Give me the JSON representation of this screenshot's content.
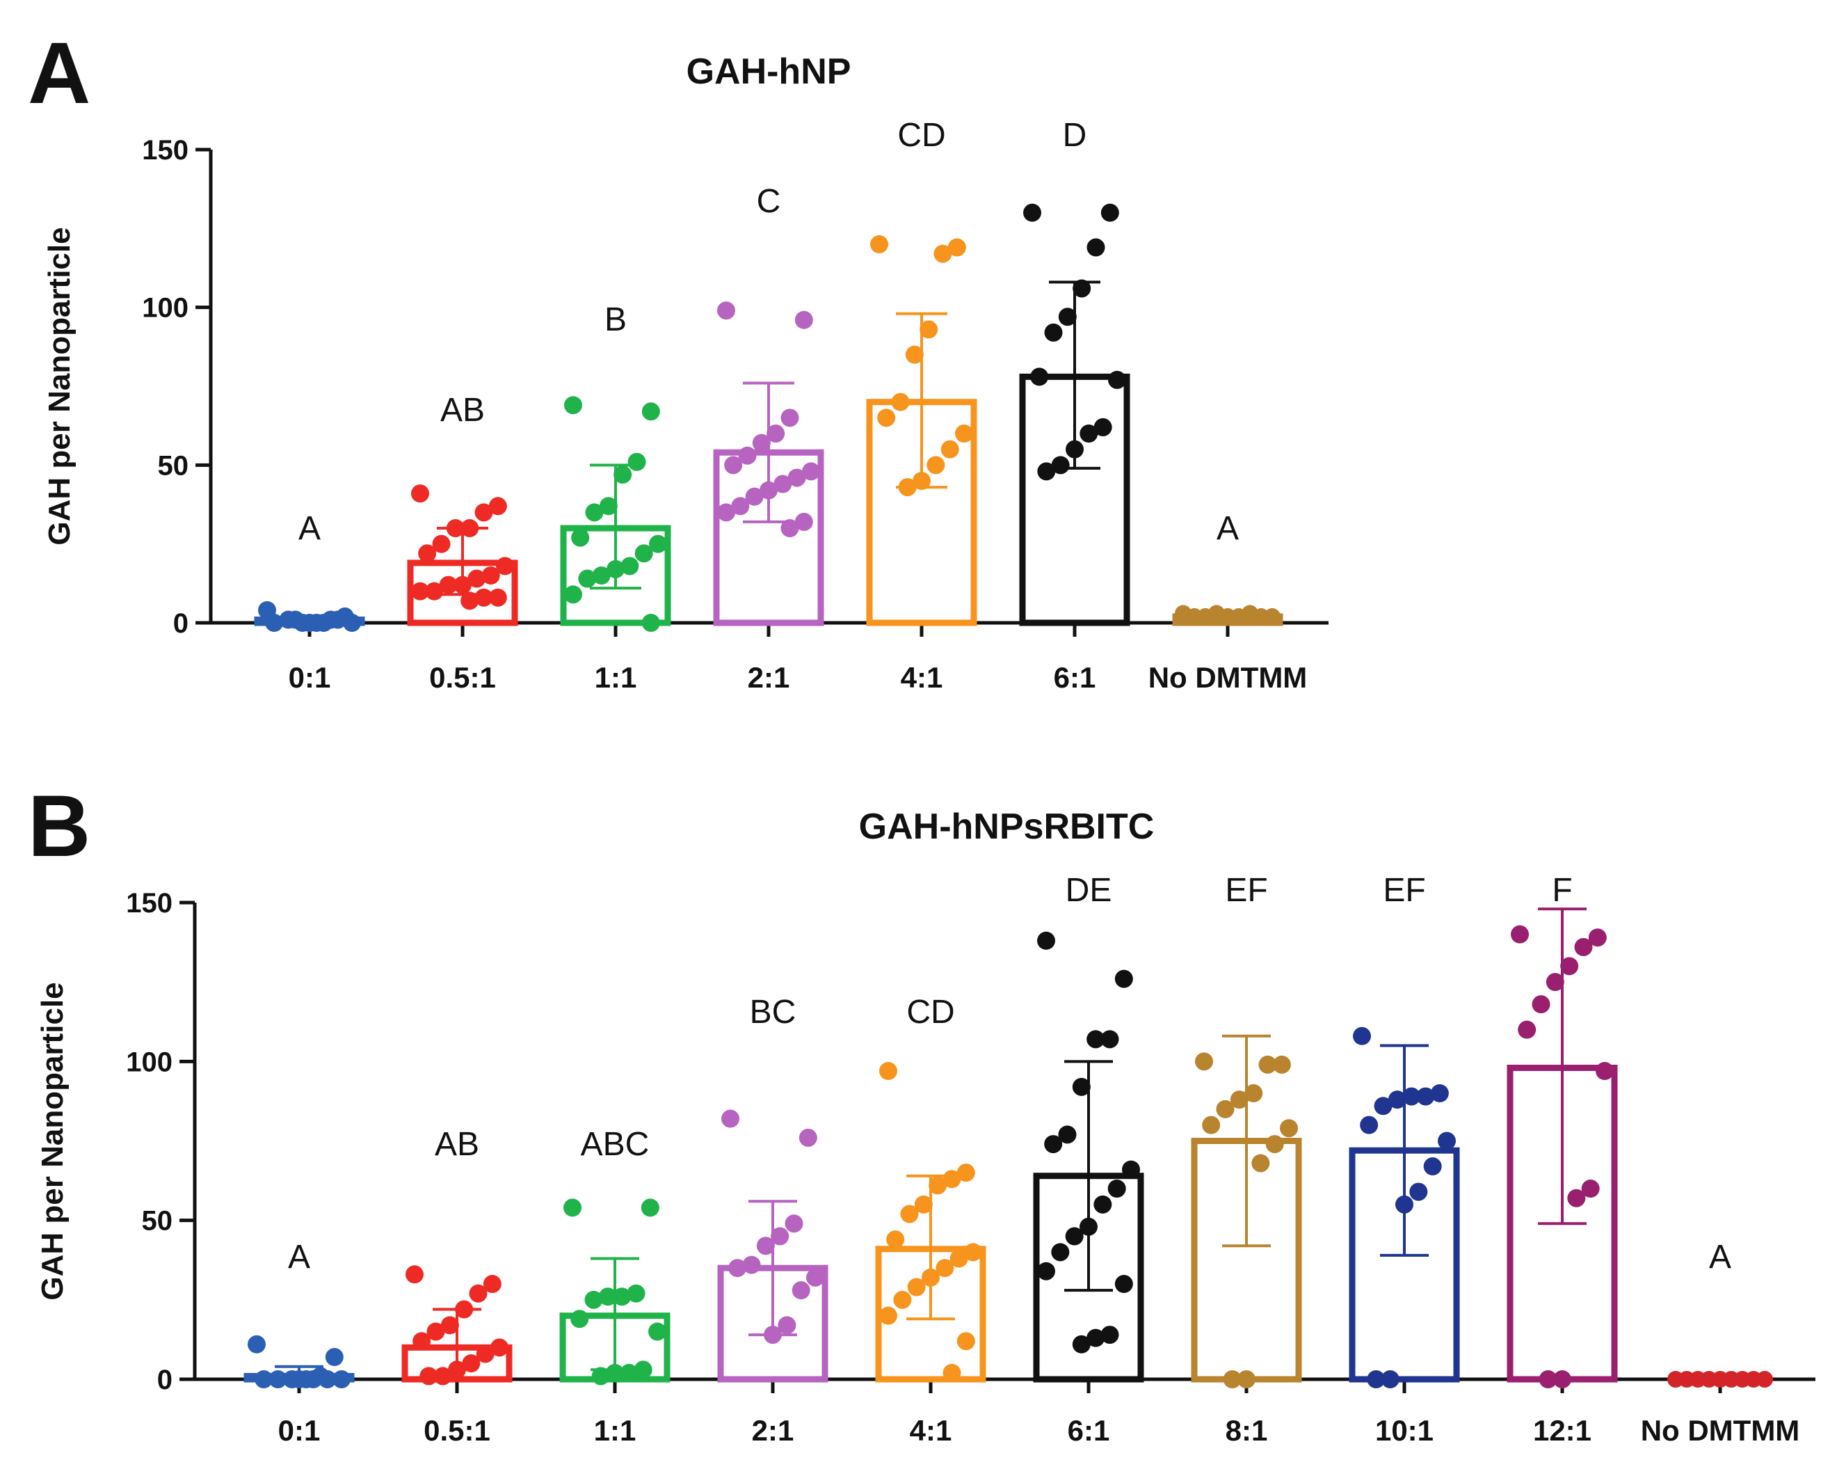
{
  "chart_data": [
    {
      "type": "bar",
      "panel": "A",
      "title": "GAH-hNP",
      "xlabel": "",
      "ylabel": "GAH per Nanoparticle",
      "ylim": [
        0,
        150
      ],
      "yticks": [
        0,
        50,
        100,
        150
      ],
      "categories": [
        "0:1",
        "0.5:1",
        "1:1",
        "2:1",
        "4:1",
        "6:1",
        "No DMTMM"
      ],
      "values": [
        1,
        19,
        30,
        54,
        70,
        78,
        2
      ],
      "errors": [
        [
          0,
          2
        ],
        [
          9,
          30
        ],
        [
          11,
          50
        ],
        [
          32,
          76
        ],
        [
          43,
          98
        ],
        [
          49,
          108
        ],
        [
          1,
          3
        ]
      ],
      "significance": [
        "A",
        "AB",
        "B",
        "C",
        "CD",
        "D",
        "A"
      ],
      "colors": [
        "#2b5fb3",
        "#ee2a24",
        "#1fb34a",
        "#b664c0",
        "#f7941d",
        "#111111",
        "#b8842e"
      ],
      "points": [
        [
          4,
          2,
          1,
          0,
          0,
          1,
          0,
          0,
          1,
          0,
          0,
          1
        ],
        [
          41,
          37,
          35,
          30,
          30,
          25,
          22,
          18,
          15,
          14,
          12,
          12,
          10,
          10,
          8,
          8,
          7
        ],
        [
          69,
          67,
          51,
          47,
          37,
          35,
          27,
          25,
          22,
          18,
          17,
          15,
          14,
          9,
          0
        ],
        [
          99,
          96,
          65,
          60,
          57,
          53,
          50,
          48,
          46,
          44,
          42,
          40,
          37,
          35,
          32,
          30
        ],
        [
          120,
          119,
          117,
          93,
          85,
          70,
          65,
          60,
          55,
          50,
          45,
          43
        ],
        [
          130,
          130,
          119,
          106,
          97,
          92,
          78,
          77,
          62,
          60,
          55,
          50,
          48
        ]
      ]
    },
    {
      "type": "bar",
      "panel": "B",
      "title": "GAH-hNPsRBITC",
      "xlabel": "",
      "ylabel": "GAH per Nanoparticle",
      "ylim": [
        0,
        150
      ],
      "yticks": [
        0,
        50,
        100,
        150
      ],
      "categories": [
        "0:1",
        "0.5:1",
        "1:1",
        "2:1",
        "4:1",
        "6:1",
        "8:1",
        "10:1",
        "12:1",
        "No DMTMM"
      ],
      "values": [
        1,
        10,
        20,
        35,
        41,
        64,
        75,
        72,
        98,
        0
      ],
      "errors": [
        [
          0,
          4
        ],
        [
          0,
          22
        ],
        [
          3,
          38
        ],
        [
          14,
          56
        ],
        [
          19,
          64
        ],
        [
          28,
          100
        ],
        [
          42,
          108
        ],
        [
          39,
          105
        ],
        [
          49,
          148
        ],
        [
          0,
          0
        ]
      ],
      "significance": [
        "A",
        "AB",
        "ABC",
        "BC",
        "CD",
        "DE",
        "EF",
        "EF",
        "F",
        "A"
      ],
      "colors": [
        "#2b5fb3",
        "#ee2a24",
        "#1fb34a",
        "#b664c0",
        "#f7941d",
        "#111111",
        "#b8842e",
        "#1f3590",
        "#9a1f6e",
        "#d3242a"
      ],
      "points": [
        [
          11,
          7,
          1,
          0,
          0,
          0,
          0,
          0,
          0,
          0,
          0
        ],
        [
          33,
          30,
          27,
          22,
          17,
          15,
          12,
          10,
          8,
          5,
          3,
          1,
          1
        ],
        [
          54,
          54,
          27,
          26,
          26,
          25,
          19,
          15,
          3,
          2,
          2,
          1
        ],
        [
          82,
          76,
          49,
          45,
          42,
          36,
          35,
          32,
          28,
          17,
          14
        ],
        [
          97,
          65,
          63,
          61,
          55,
          52,
          44,
          40,
          38,
          35,
          32,
          29,
          25,
          20,
          12,
          2
        ],
        [
          138,
          126,
          107,
          107,
          92,
          77,
          74,
          66,
          60,
          55,
          48,
          45,
          40,
          34,
          30,
          14,
          13,
          11
        ],
        [
          100,
          99,
          99,
          90,
          88,
          85,
          80,
          79,
          74,
          68,
          0,
          0
        ],
        [
          108,
          90,
          89,
          89,
          88,
          86,
          80,
          75,
          67,
          59,
          55,
          0,
          0
        ],
        [
          140,
          139,
          136,
          130,
          125,
          118,
          110,
          97,
          60,
          57,
          0,
          0
        ]
      ]
    }
  ]
}
